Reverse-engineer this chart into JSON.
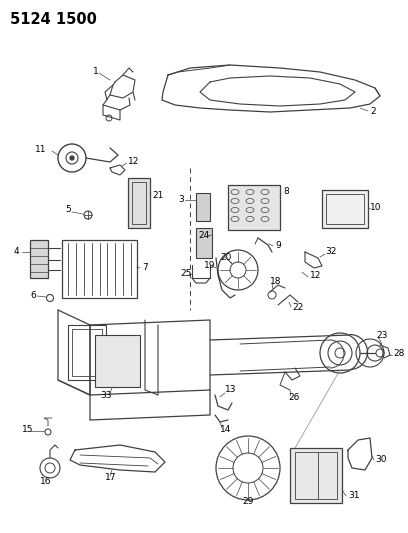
{
  "title": "5124 1500",
  "bg_color": "#ffffff",
  "line_color": "#404040",
  "label_color": "#000000",
  "fig_w": 4.08,
  "fig_h": 5.33,
  "dpi": 100
}
